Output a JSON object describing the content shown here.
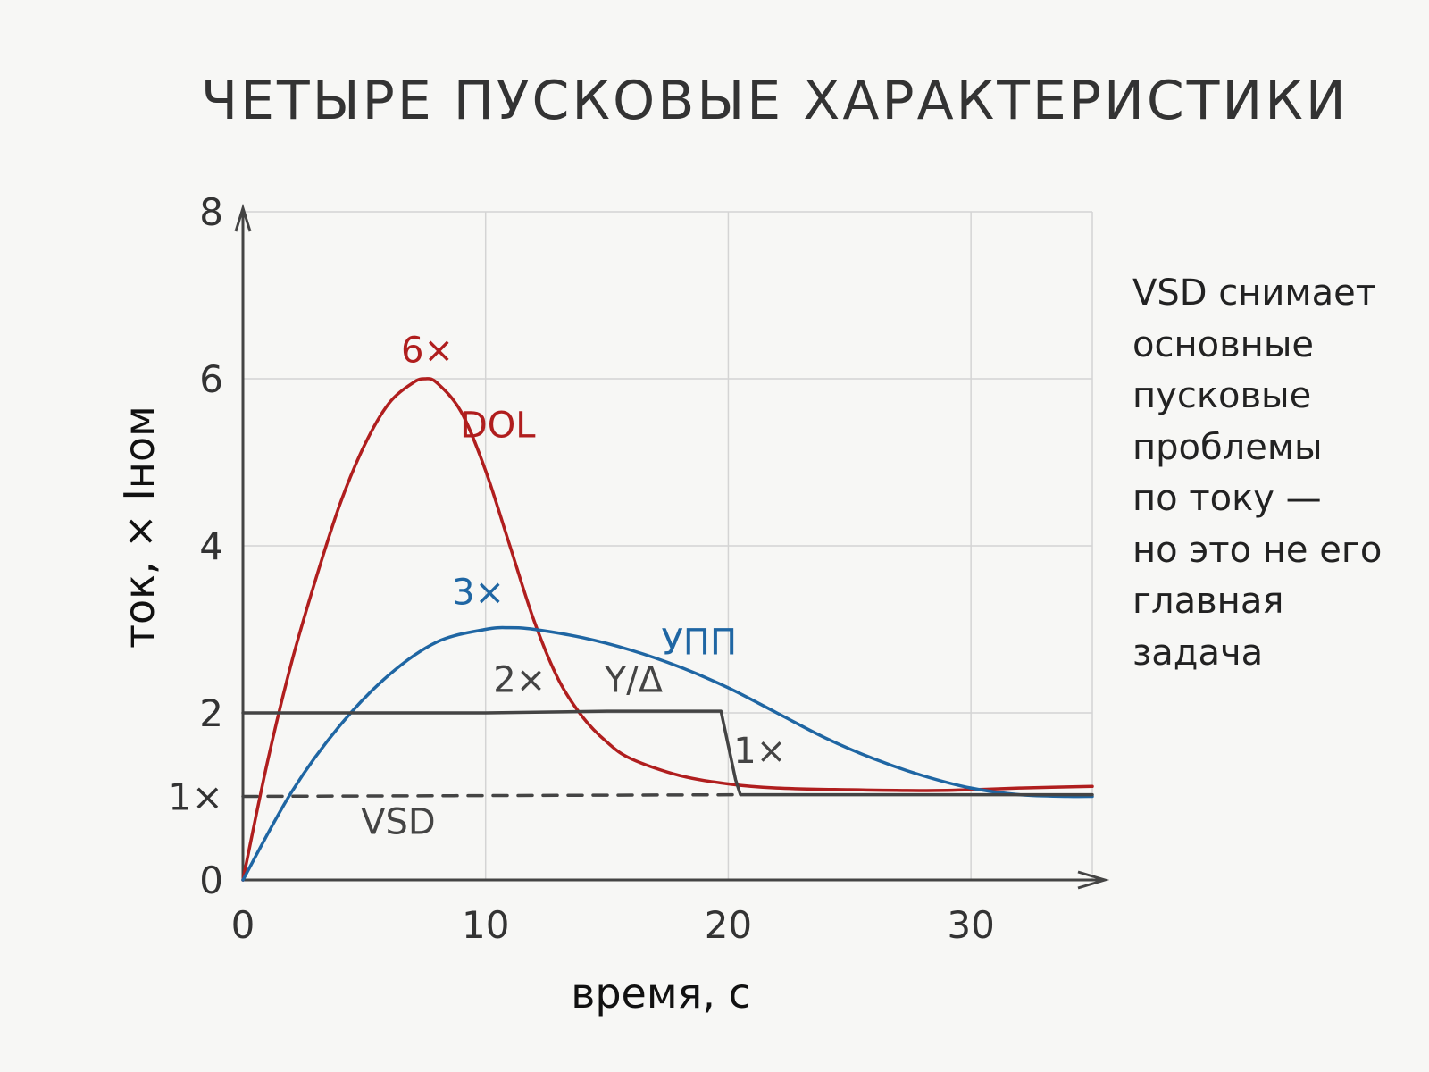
{
  "chart_data": {
    "type": "line",
    "title": "ЧЕТЫРЕ ПУСКОВЫЕ ХАРАКТЕРИСТИКИ",
    "xlabel": "время, с",
    "ylabel": "ток, × Iном",
    "xlim": [
      0,
      35
    ],
    "ylim": [
      0,
      8
    ],
    "xticks": [
      "0",
      "10",
      "20",
      "30"
    ],
    "yticks": [
      "0",
      "1×",
      "2",
      "4",
      "6",
      "8"
    ],
    "grid": true,
    "series": [
      {
        "name": "DOL",
        "color": "#b01e1e",
        "dashed": false,
        "x": [
          0,
          1,
          2,
          3,
          4,
          5,
          6,
          7,
          7.5,
          8,
          9,
          10,
          11,
          12,
          13,
          14,
          15,
          16,
          18,
          20,
          22,
          25,
          28,
          30,
          32,
          35
        ],
        "y": [
          0,
          1.4,
          2.6,
          3.6,
          4.5,
          5.2,
          5.7,
          5.95,
          6.0,
          5.95,
          5.6,
          4.9,
          4.0,
          3.1,
          2.4,
          1.95,
          1.65,
          1.45,
          1.25,
          1.15,
          1.1,
          1.08,
          1.07,
          1.08,
          1.1,
          1.12
        ]
      },
      {
        "name": "УПП",
        "color": "#1f66a3",
        "dashed": false,
        "x": [
          0,
          2,
          4,
          6,
          8,
          10,
          11,
          12,
          14,
          16,
          18,
          20,
          22,
          24,
          26,
          28,
          30,
          32,
          34,
          35
        ],
        "y": [
          0,
          1.05,
          1.85,
          2.45,
          2.85,
          3.0,
          3.02,
          3.0,
          2.9,
          2.75,
          2.55,
          2.3,
          2.0,
          1.7,
          1.45,
          1.25,
          1.1,
          1.02,
          1.0,
          1.0
        ]
      },
      {
        "name": "Y/Δ",
        "color": "#444444",
        "dashed": false,
        "x": [
          0,
          5,
          10,
          15,
          19.7,
          20.3,
          20.5,
          25,
          30,
          35
        ],
        "y": [
          2.0,
          2.0,
          2.0,
          2.02,
          2.02,
          1.2,
          1.02,
          1.02,
          1.02,
          1.02
        ]
      },
      {
        "name": "VSD",
        "color": "#444444",
        "dashed": true,
        "x": [
          0,
          20.3
        ],
        "y": [
          1.0,
          1.02
        ]
      }
    ],
    "annotations": [
      {
        "text": "6×",
        "x": 7.6,
        "y": 6.2,
        "color": "#b01e1e"
      },
      {
        "text": "DOL",
        "x": 10.5,
        "y": 5.3,
        "color": "#b01e1e"
      },
      {
        "text": "3×",
        "x": 9.7,
        "y": 3.3,
        "color": "#1f66a3"
      },
      {
        "text": "УПП",
        "x": 18.8,
        "y": 2.7,
        "color": "#1f66a3"
      },
      {
        "text": "2×",
        "x": 11.4,
        "y": 2.25,
        "color": "#444444"
      },
      {
        "text": "Y/Δ",
        "x": 16.1,
        "y": 2.25,
        "color": "#444444"
      },
      {
        "text": "1×",
        "x": 21.3,
        "y": 1.4,
        "color": "#444444"
      },
      {
        "text": "VSD",
        "x": 6.4,
        "y": 0.55,
        "color": "#444444"
      }
    ]
  },
  "note_lines": [
    "VSD снимает",
    "основные",
    "пусковые",
    "проблемы",
    "по току —",
    "но это не его",
    "главная",
    "задача"
  ]
}
